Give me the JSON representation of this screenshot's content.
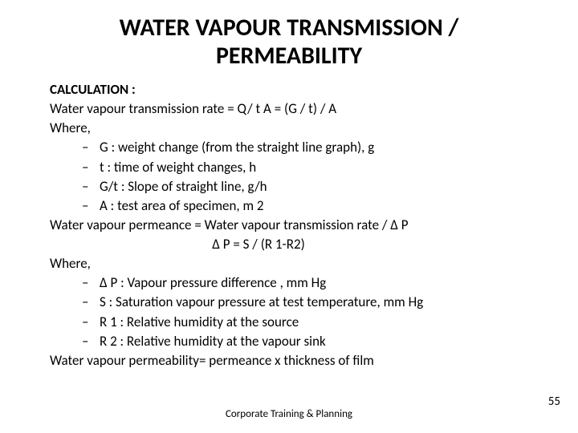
{
  "title_line1": "WATER VAPOUR TRANSMISSION /",
  "title_line2": "PERMEABILITY",
  "subheading": "CALCULATION :",
  "line_rate": "Water vapour transmission rate   = Q/ t A   = (G / t) / A",
  "where1": "Where,",
  "defs1": [
    "G     : weight change (from the straight line graph), g",
    " t     : time of weight changes, h",
    "G/t  : Slope of straight line, g/h",
    "A     : test area of specimen, m 2"
  ],
  "line_permeance": "Water vapour permeance = Water vapour transmission rate / Δ P",
  "eq_dp": "Δ P = S / (R 1-R2)",
  "where2": "Where,",
  "defs2": [
    "Δ P  : Vapour pressure difference , mm Hg",
    "S      : Saturation vapour pressure at test temperature, mm Hg",
    "R 1  : Relative humidity at the source",
    "R 2  : Relative humidity at the vapour sink"
  ],
  "line_permeability": "Water vapour permeability= permeance x thickness of film",
  "dash": "–",
  "footer": "Corporate Training & Planning",
  "page_number": "55"
}
